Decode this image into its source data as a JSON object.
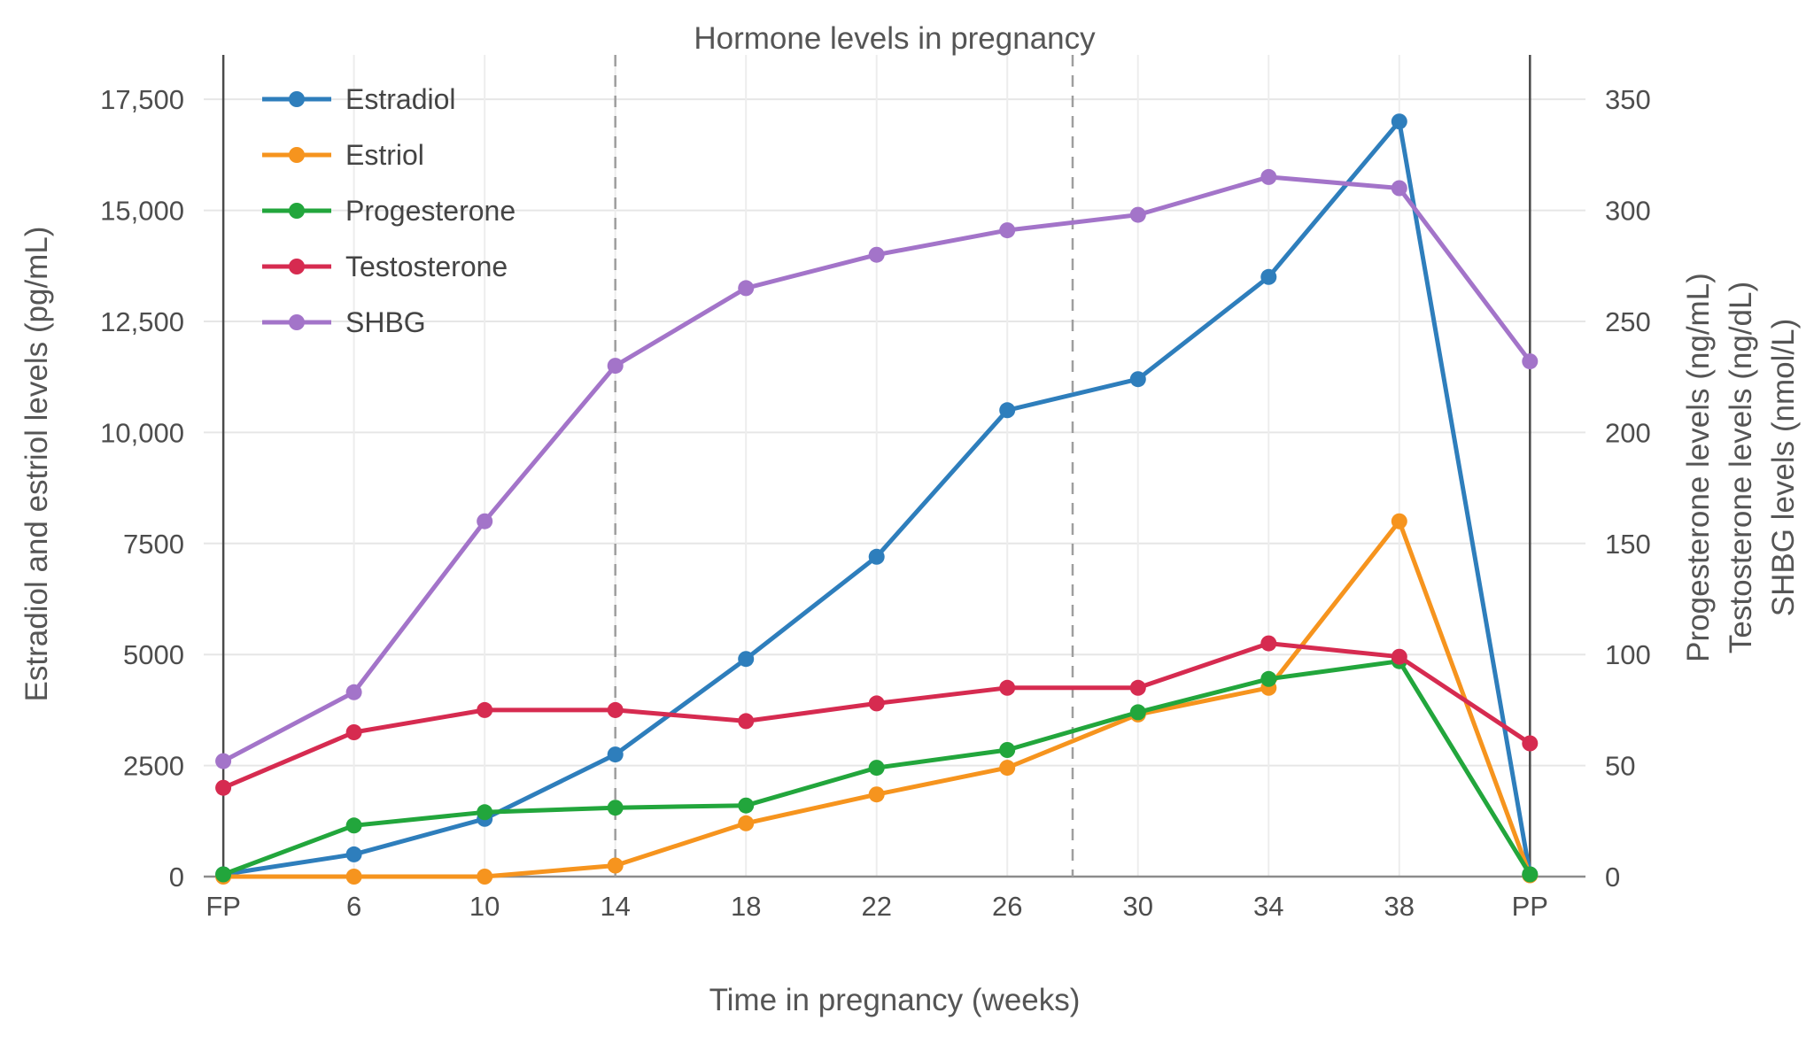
{
  "chart_data": {
    "type": "line",
    "title": "Hormone levels in pregnancy",
    "xlabel": "Time in pregnancy (weeks)",
    "x_categories": [
      "FP",
      "6",
      "10",
      "14",
      "18",
      "22",
      "26",
      "30",
      "34",
      "38",
      "PP"
    ],
    "x_numeric": [
      2,
      6,
      10,
      14,
      18,
      22,
      26,
      30,
      34,
      38,
      42
    ],
    "x_range": [
      1.4,
      43.7
    ],
    "grid": true,
    "legend_position": "top-left-inside",
    "left_axis": {
      "label": "Estradiol and estriol levels (pg/mL)",
      "ticks": [
        "0",
        "2500",
        "5000",
        "7500",
        "10,000",
        "12,500",
        "15,000",
        "17,500"
      ],
      "tick_values": [
        0,
        2500,
        5000,
        7500,
        10000,
        12500,
        15000,
        17500
      ],
      "range": [
        0,
        18500
      ]
    },
    "right_axis": {
      "labels": [
        "Progesterone levels (ng/mL)",
        "Testosterone levels (ng/dL)",
        "SHBG levels (nmol/L)"
      ],
      "ticks": [
        "0",
        "50",
        "100",
        "150",
        "200",
        "250",
        "300",
        "350"
      ],
      "tick_values": [
        0,
        50,
        100,
        150,
        200,
        250,
        300,
        350
      ],
      "range": [
        0,
        370
      ]
    },
    "reference_lines": {
      "solid_x": [
        2,
        42
      ],
      "dashed_x": [
        14,
        28
      ]
    },
    "series": [
      {
        "name": "Estradiol",
        "axis": "left",
        "color": "#2e7ebc",
        "values": [
          50,
          500,
          1300,
          2750,
          4900,
          7200,
          10500,
          11200,
          13500,
          17000,
          50
        ]
      },
      {
        "name": "Estriol",
        "axis": "left",
        "color": "#f6941e",
        "values": [
          0,
          0,
          0,
          250,
          1200,
          1850,
          2450,
          3650,
          4250,
          8000,
          30
        ]
      },
      {
        "name": "Progesterone",
        "axis": "right",
        "color": "#22a63c",
        "values": [
          1,
          23,
          29,
          31,
          32,
          49,
          57,
          74,
          89,
          97,
          1
        ]
      },
      {
        "name": "Testosterone",
        "axis": "right",
        "color": "#d62b50",
        "values": [
          40,
          65,
          75,
          75,
          70,
          78,
          85,
          85,
          105,
          99,
          60
        ]
      },
      {
        "name": "SHBG",
        "axis": "right",
        "color": "#a374c9",
        "values": [
          52,
          83,
          160,
          230,
          265,
          280,
          291,
          298,
          315,
          310,
          232
        ]
      }
    ],
    "style": {
      "gridline_color": "#e6e6e6",
      "v_gridline_color": "#ededed",
      "axis_line_color": "#8c8c8c",
      "dashed_line_color": "#9e9e9e",
      "solid_line_color": "#4a4a4a",
      "text_color": "#4d4d4d"
    }
  }
}
